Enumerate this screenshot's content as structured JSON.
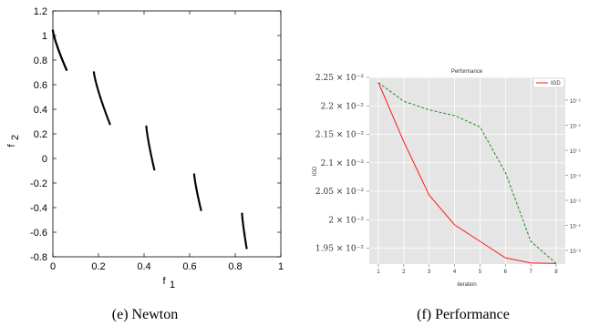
{
  "chart_data": [
    {
      "type": "scatter",
      "caption": "(e) Newton",
      "xlabel": "f",
      "xlabel_sub": "1",
      "ylabel": "f",
      "ylabel_sub": "2",
      "xlim": [
        0,
        1
      ],
      "ylim": [
        -0.8,
        1.2
      ],
      "xticks": [
        "0",
        "0.2",
        "0.4",
        "0.6",
        "0.8",
        "1"
      ],
      "yticks": [
        "-0.8",
        "-0.6",
        "-0.4",
        "-0.2",
        "0",
        "0.2",
        "0.4",
        "0.6",
        "0.8",
        "1",
        "1.2"
      ],
      "marker_color": "#000000",
      "segments": [
        {
          "x0": 0.0,
          "y0": 1.04,
          "x1": 0.06,
          "y1": 0.72,
          "n": 36
        },
        {
          "x0": 0.18,
          "y0": 0.7,
          "x1": 0.25,
          "y1": 0.28,
          "n": 34
        },
        {
          "x0": 0.41,
          "y0": 0.26,
          "x1": 0.445,
          "y1": -0.09,
          "n": 28
        },
        {
          "x0": 0.62,
          "y0": -0.13,
          "x1": 0.65,
          "y1": -0.42,
          "n": 24
        },
        {
          "x0": 0.83,
          "y0": -0.45,
          "x1": 0.85,
          "y1": -0.73,
          "n": 24
        }
      ]
    },
    {
      "type": "line",
      "caption": "(f) Performance",
      "title": "Performance",
      "xlabel": "iteration",
      "ylabel": "IGD",
      "ylabel_color": "#e8302a",
      "legend": [
        "IGD"
      ],
      "legend_position": "top-right",
      "background": "#e5e5e5",
      "grid": true,
      "x": [
        1,
        2,
        3,
        4,
        5,
        6,
        7,
        8
      ],
      "xticks": [
        "1",
        "2",
        "3",
        "4",
        "5",
        "6",
        "7",
        "8"
      ],
      "ylim": [
        1.922,
        2.25
      ],
      "yticks": [
        {
          "v": 2.25,
          "label": "2.25 × 10⁻²"
        },
        {
          "v": 2.2,
          "label": "2.2 × 10⁻²"
        },
        {
          "v": 2.15,
          "label": "2.15 × 10⁻²"
        },
        {
          "v": 2.1,
          "label": "2.1 × 10⁻²"
        },
        {
          "v": 2.05,
          "label": "2.05 × 10⁻²"
        },
        {
          "v": 2.0,
          "label": "2 × 10⁻²"
        },
        {
          "v": 1.95,
          "label": "1.95 × 10⁻²"
        }
      ],
      "right_ticks": [
        "10⁻¹",
        "10⁻¹",
        "10⁻¹",
        "10⁻¹",
        "10⁻¹",
        "10⁻¹",
        "10⁻²"
      ],
      "series": [
        {
          "name": "IGD",
          "color": "#ff1a1a",
          "dash": "",
          "values": [
            2.241,
            2.137,
            2.043,
            1.991,
            1.962,
            1.933,
            1.924,
            1.923
          ]
        },
        {
          "color": "#1f8a1f",
          "dash": "3,2",
          "values": [
            2.241,
            2.208,
            2.193,
            2.183,
            2.163,
            2.083,
            1.962,
            1.923
          ]
        }
      ]
    }
  ]
}
